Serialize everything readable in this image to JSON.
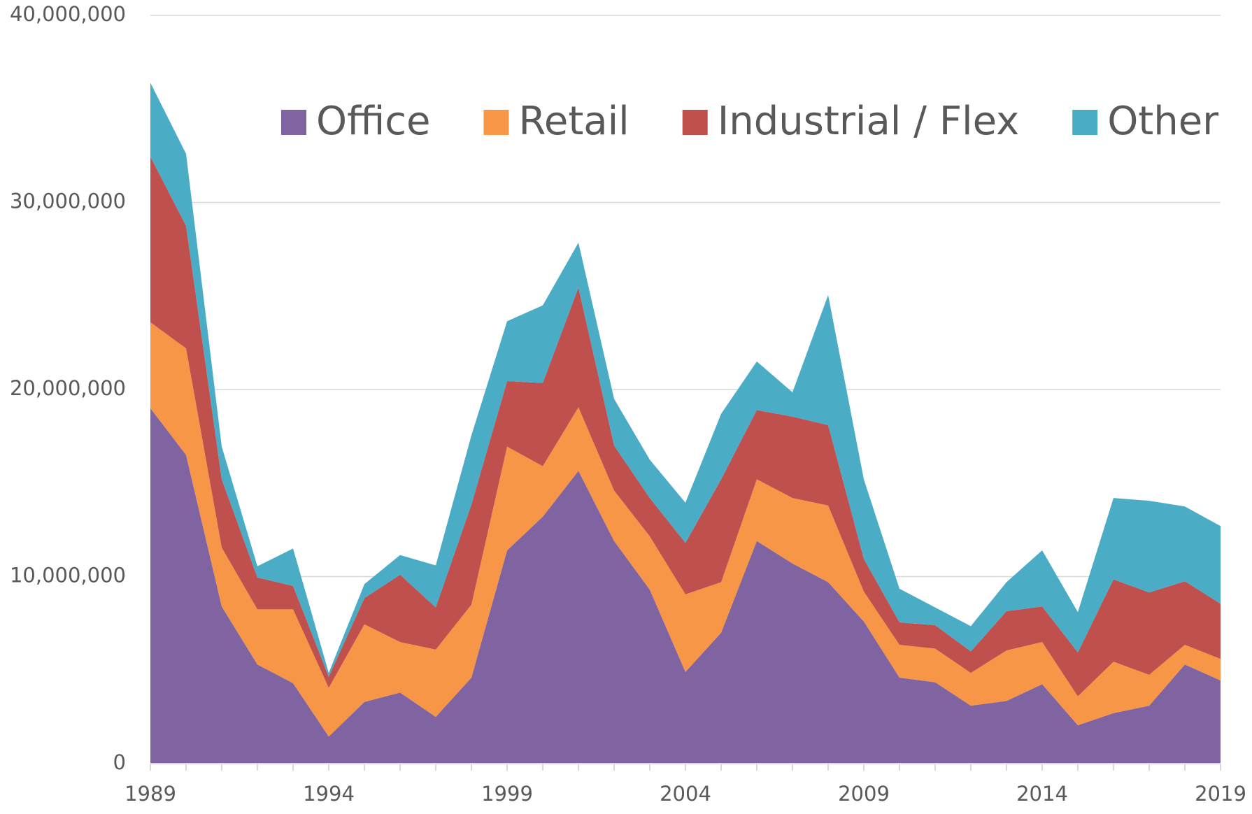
{
  "chart_data": {
    "type": "stacked-area",
    "x": [
      1989,
      1990,
      1991,
      1992,
      1993,
      1994,
      1995,
      1996,
      1997,
      1998,
      1999,
      2000,
      2001,
      2002,
      2003,
      2004,
      2005,
      2006,
      2007,
      2008,
      2009,
      2010,
      2011,
      2012,
      2013,
      2014,
      2015,
      2016,
      2017,
      2018,
      2019
    ],
    "series": [
      {
        "name": "Office",
        "color": "#8064a2",
        "values": [
          19000000,
          16500000,
          8400000,
          5300000,
          4300000,
          1450000,
          3300000,
          3800000,
          2500000,
          4600000,
          11400000,
          13200000,
          15650000,
          11900000,
          9300000,
          4900000,
          7000000,
          11900000,
          10700000,
          9700000,
          7600000,
          4600000,
          4350000,
          3100000,
          3350000,
          4250000,
          2050000,
          2700000,
          3100000,
          5300000,
          4450000
        ]
      },
      {
        "name": "Retail",
        "color": "#f79646",
        "values": [
          4600000,
          5700000,
          3150000,
          2950000,
          3950000,
          2600000,
          4150000,
          2700000,
          3600000,
          3900000,
          5550000,
          2700000,
          3400000,
          2700000,
          2850000,
          4150000,
          2700000,
          3300000,
          3500000,
          4100000,
          1600000,
          1750000,
          1800000,
          1750000,
          2700000,
          2250000,
          1550000,
          2750000,
          1650000,
          1050000,
          1150000
        ]
      },
      {
        "name": "Industrial / Flex",
        "color": "#c0504d",
        "values": [
          8850000,
          6550000,
          3650000,
          1700000,
          1250000,
          600000,
          1400000,
          3600000,
          2250000,
          5350000,
          3500000,
          4450000,
          6400000,
          2400000,
          2050000,
          2750000,
          5500000,
          3700000,
          4350000,
          4300000,
          1750000,
          1200000,
          1250000,
          1150000,
          2100000,
          1900000,
          2350000,
          4400000,
          4400000,
          3400000,
          2950000
        ]
      },
      {
        "name": "Other",
        "color": "#4bacc6",
        "values": [
          3950000,
          3850000,
          1750000,
          600000,
          2000000,
          200000,
          750000,
          1050000,
          2250000,
          3700000,
          3200000,
          4150000,
          2400000,
          2500000,
          2050000,
          2150000,
          3500000,
          2600000,
          1300000,
          6950000,
          4250000,
          1800000,
          950000,
          1350000,
          1550000,
          3000000,
          2150000,
          4350000,
          4900000,
          4000000,
          4150000
        ]
      }
    ],
    "xlim": [
      1989,
      2019
    ],
    "xticks": [
      1989,
      1994,
      1999,
      2004,
      2009,
      2014,
      2019
    ],
    "ylim": [
      0,
      40000000
    ],
    "yticks": [
      0,
      {
        "value": 10000000,
        "label": "10,000,000"
      },
      {
        "value": 20000000,
        "label": "20,000,000"
      },
      {
        "value": 30000000,
        "label": "30,000,000"
      },
      {
        "value": 40000000,
        "label": "40,000,000"
      }
    ],
    "grid": true,
    "legend": "top"
  }
}
